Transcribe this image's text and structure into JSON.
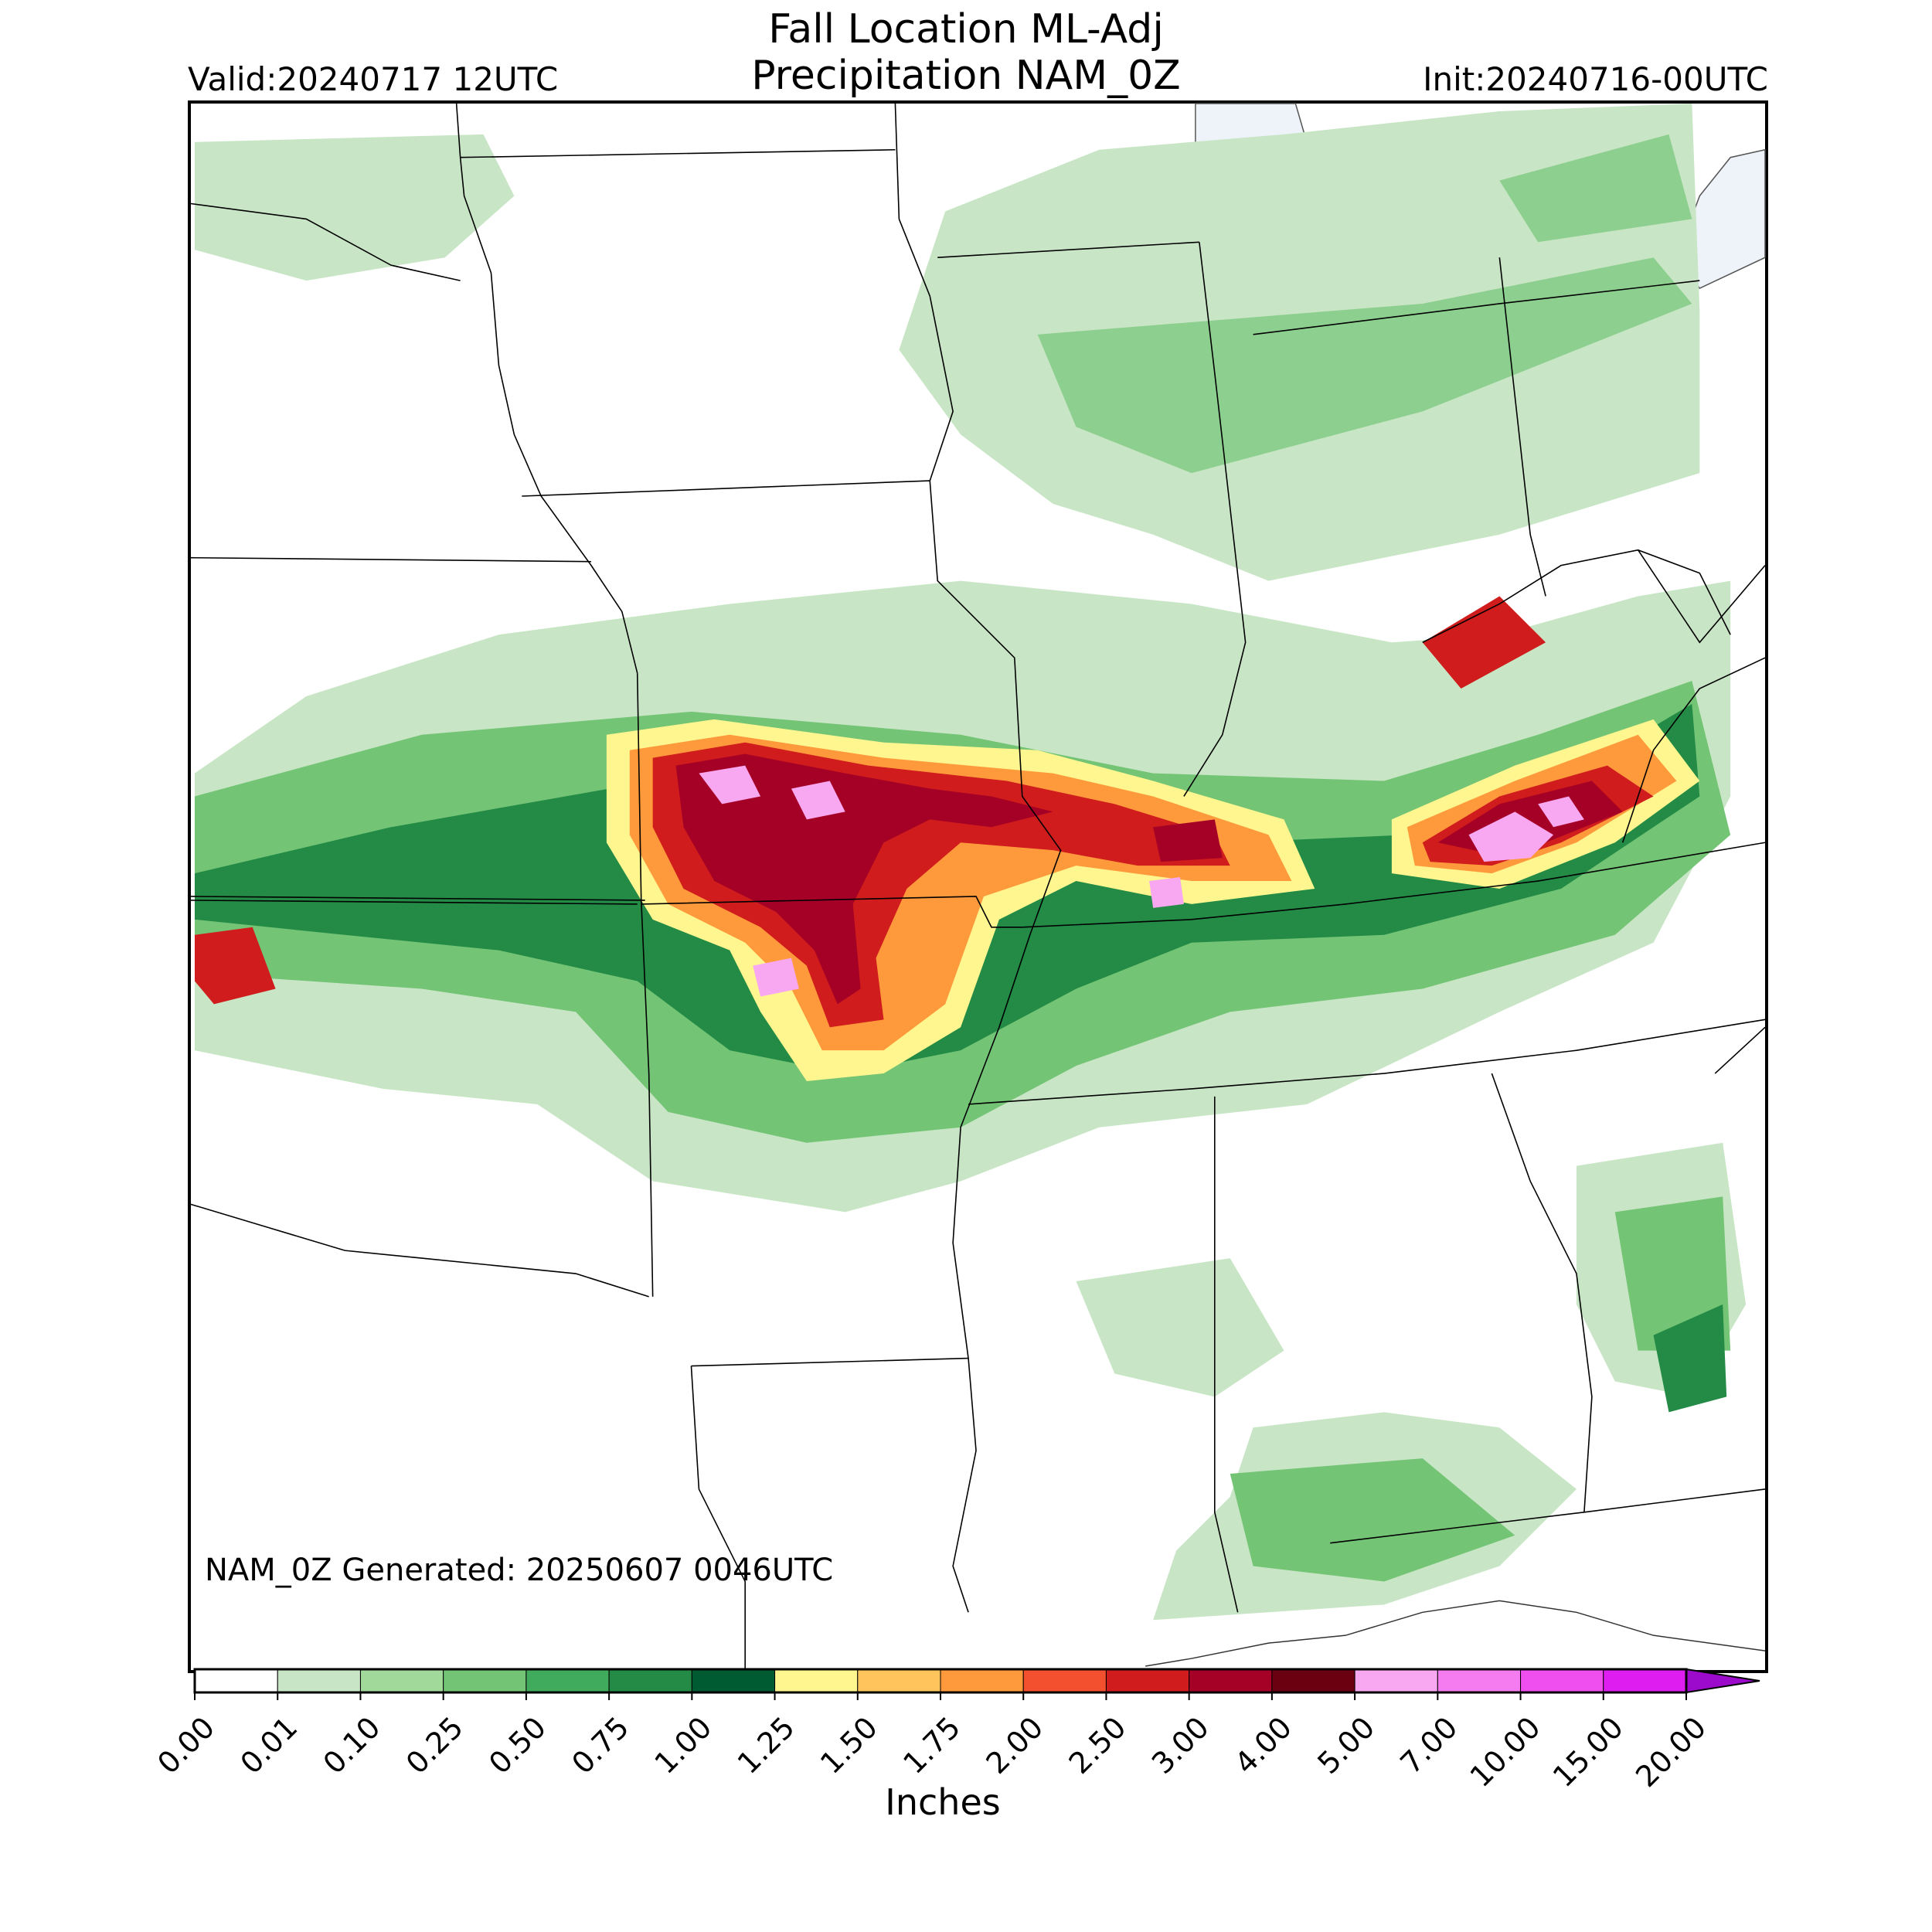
{
  "header": {
    "title_line1": "Fall Location ML-Adj",
    "title_line2": "Precipitation NAM_0Z",
    "valid": "Valid:20240717 12UTC",
    "init": "Init:20240716-00UTC"
  },
  "footer": {
    "generated": "NAM_0Z Generated: 20250607 0046UTC"
  },
  "colorbar": {
    "label": "Inches",
    "ticks": [
      "0.00",
      "0.01",
      "0.10",
      "0.25",
      "0.50",
      "0.75",
      "1.00",
      "1.25",
      "1.50",
      "1.75",
      "2.00",
      "2.50",
      "3.00",
      "4.00",
      "5.00",
      "7.00",
      "10.00",
      "15.00",
      "20.00"
    ],
    "colors": [
      "#ffffff",
      "#c8e6c5",
      "#a0d99a",
      "#74c476",
      "#41ab5d",
      "#238b45",
      "#005a32",
      "#fff68f",
      "#ffc55c",
      "#ff9a3c",
      "#f2502e",
      "#d01c1c",
      "#a50026",
      "#6b0010",
      "#f7a8f0",
      "#f47cf0",
      "#ee4fee",
      "#de1ef0",
      "#9c0acb"
    ],
    "extend": "max"
  },
  "legend_colors": {
    "light_green": "#c8e6c5",
    "green": "#74c476",
    "dark_green": "#238b45",
    "yellow": "#fff68f",
    "orange": "#ff9a3c",
    "red": "#d01c1c",
    "dark_red": "#a50026",
    "pink": "#f7a8f0",
    "lake": "#eef3fa"
  }
}
